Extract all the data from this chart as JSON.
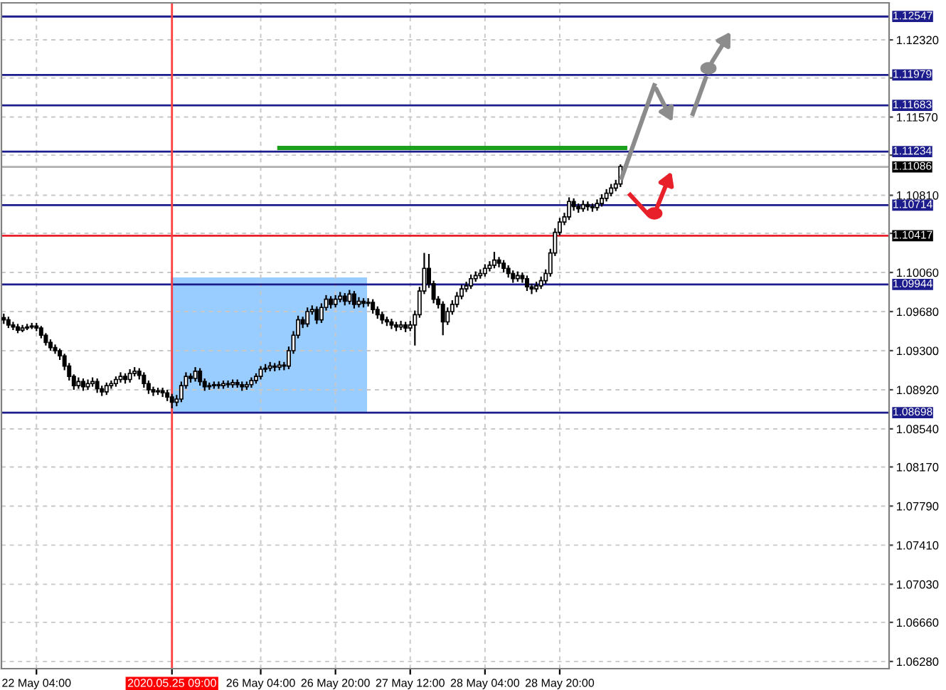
{
  "chart_data": {
    "type": "candlestick",
    "categories": [
      null,
      null,
      null,
      null,
      null,
      null,
      null,
      "22 May 04:00",
      null,
      null,
      null,
      null,
      null,
      null,
      null,
      null,
      null,
      null,
      null,
      null,
      null,
      null,
      null,
      null,
      null,
      null,
      null,
      null,
      null,
      null,
      null,
      null,
      null,
      null,
      null,
      null,
      "2020.05.25 09:00",
      null,
      null,
      null,
      null,
      null,
      null,
      null,
      null,
      null,
      null,
      null,
      null,
      null,
      null,
      null,
      null,
      null,
      null,
      "26 May 04:00",
      null,
      null,
      null,
      null,
      null,
      null,
      null,
      null,
      null,
      null,
      null,
      null,
      null,
      null,
      null,
      "26 May 20:00",
      null,
      null,
      null,
      null,
      null,
      null,
      null,
      null,
      null,
      null,
      null,
      null,
      null,
      null,
      null,
      "27 May 12:00",
      null,
      null,
      null,
      null,
      null,
      null,
      null,
      null,
      null,
      null,
      null,
      null,
      null,
      null,
      null,
      "28 May 04:00",
      null,
      null,
      null,
      null,
      null,
      null,
      null,
      null,
      null,
      null,
      null,
      null,
      null,
      null,
      null,
      "28 May 20:00",
      null,
      null,
      null,
      null,
      null,
      null,
      null,
      null,
      null,
      null,
      null,
      null,
      null,
      null,
      null,
      null,
      null,
      null,
      null,
      null,
      null,
      null,
      null,
      null,
      null,
      null,
      null,
      null,
      null,
      null,
      null,
      null,
      null,
      null,
      null,
      null,
      null,
      null,
      null,
      null,
      null,
      null,
      null,
      null,
      null,
      null,
      null,
      null,
      null,
      null,
      null,
      null,
      null,
      null,
      null,
      null,
      null,
      null,
      null,
      null,
      null,
      null,
      null,
      null,
      null,
      null,
      null,
      null,
      null,
      null
    ],
    "ohlc": [
      [
        1.0962,
        1.0966,
        1.0956,
        1.096
      ],
      [
        1.096,
        1.0963,
        1.0952,
        1.0955
      ],
      [
        1.0955,
        1.0958,
        1.095,
        1.0953
      ],
      [
        1.0953,
        1.0956,
        1.0947,
        1.095
      ],
      [
        1.095,
        1.0955,
        1.0948,
        1.0952
      ],
      [
        1.0952,
        1.0956,
        1.095,
        1.0953
      ],
      [
        1.0953,
        1.0957,
        1.0951,
        1.0954
      ],
      [
        1.0954,
        1.0957,
        1.0949,
        1.0952
      ],
      [
        1.0952,
        1.0954,
        1.0942,
        1.0945
      ],
      [
        1.0945,
        1.0947,
        1.0935,
        1.0938
      ],
      [
        1.0938,
        1.0941,
        1.093,
        1.0933
      ],
      [
        1.0933,
        1.0936,
        1.0927,
        1.093
      ],
      [
        1.093,
        1.0932,
        1.0921,
        1.0925
      ],
      [
        1.0925,
        1.0927,
        1.0911,
        1.0915
      ],
      [
        1.0915,
        1.0918,
        1.0901,
        1.0905
      ],
      [
        1.0905,
        1.0907,
        1.0892,
        1.0896
      ],
      [
        1.0896,
        1.0904,
        1.0893,
        1.09
      ],
      [
        1.09,
        1.0903,
        1.0891,
        1.0895
      ],
      [
        1.0895,
        1.0902,
        1.0892,
        1.0898
      ],
      [
        1.0898,
        1.0904,
        1.0895,
        1.09
      ],
      [
        1.09,
        1.0903,
        1.0889,
        1.0893
      ],
      [
        1.0893,
        1.0896,
        1.0886,
        1.089
      ],
      [
        1.089,
        1.0899,
        1.0887,
        1.0896
      ],
      [
        1.0896,
        1.0901,
        1.0893,
        1.0898
      ],
      [
        1.0898,
        1.0905,
        1.0895,
        1.0902
      ],
      [
        1.0902,
        1.0909,
        1.0899,
        1.0905
      ],
      [
        1.0905,
        1.0908,
        1.0898,
        1.0902
      ],
      [
        1.0902,
        1.0912,
        1.0899,
        1.0908
      ],
      [
        1.0908,
        1.0914,
        1.0905,
        1.091
      ],
      [
        1.091,
        1.0913,
        1.0902,
        1.0906
      ],
      [
        1.0906,
        1.0909,
        1.0894,
        1.0898
      ],
      [
        1.0898,
        1.0901,
        1.0888,
        1.0892
      ],
      [
        1.0892,
        1.0895,
        1.0886,
        1.089
      ],
      [
        1.089,
        1.0894,
        1.0887,
        1.0891
      ],
      [
        1.0891,
        1.0894,
        1.0885,
        1.0889
      ],
      [
        1.0889,
        1.0892,
        1.0881,
        1.0885
      ],
      [
        1.0885,
        1.0888,
        1.0874,
        1.088
      ],
      [
        1.088,
        1.0887,
        1.0876,
        1.0883
      ],
      [
        1.0883,
        1.09,
        1.088,
        1.0896
      ],
      [
        1.0896,
        1.0909,
        1.0893,
        1.0905
      ],
      [
        1.0905,
        1.0908,
        1.0899,
        1.0903
      ],
      [
        1.0903,
        1.0914,
        1.09,
        1.091
      ],
      [
        1.091,
        1.0913,
        1.0896,
        1.09
      ],
      [
        1.09,
        1.0903,
        1.0891,
        1.0895
      ],
      [
        1.0895,
        1.0899,
        1.0892,
        1.0896
      ],
      [
        1.0896,
        1.09,
        1.0893,
        1.0897
      ],
      [
        1.0897,
        1.09,
        1.0893,
        1.0896
      ],
      [
        1.0896,
        1.0901,
        1.0893,
        1.0898
      ],
      [
        1.0898,
        1.0901,
        1.0894,
        1.0897
      ],
      [
        1.0897,
        1.0902,
        1.0894,
        1.0899
      ],
      [
        1.0899,
        1.0902,
        1.0894,
        1.0897
      ],
      [
        1.0897,
        1.09,
        1.0891,
        1.0895
      ],
      [
        1.0895,
        1.09,
        1.0892,
        1.0897
      ],
      [
        1.0897,
        1.0904,
        1.0894,
        1.0901
      ],
      [
        1.0901,
        1.0908,
        1.0898,
        1.0905
      ],
      [
        1.0905,
        1.0915,
        1.0902,
        1.0912
      ],
      [
        1.0912,
        1.0917,
        1.0909,
        1.0913
      ],
      [
        1.0913,
        1.0919,
        1.091,
        1.0915
      ],
      [
        1.0915,
        1.0918,
        1.091,
        1.0914
      ],
      [
        1.0914,
        1.092,
        1.0911,
        1.0916
      ],
      [
        1.0916,
        1.0919,
        1.0911,
        1.0915
      ],
      [
        1.0915,
        1.0934,
        1.0912,
        1.093
      ],
      [
        1.093,
        1.0949,
        1.0927,
        1.0945
      ],
      [
        1.0945,
        1.0964,
        1.0942,
        1.096
      ],
      [
        1.096,
        1.0963,
        1.0952,
        1.0956
      ],
      [
        1.0956,
        1.0972,
        1.0953,
        1.0968
      ],
      [
        1.0968,
        1.0974,
        1.0965,
        1.097
      ],
      [
        1.097,
        1.0973,
        1.0956,
        1.096
      ],
      [
        1.096,
        1.0976,
        1.0957,
        1.0972
      ],
      [
        1.0972,
        1.0984,
        1.0969,
        1.098
      ],
      [
        1.098,
        1.0983,
        1.0971,
        1.0975
      ],
      [
        1.0975,
        1.0984,
        1.0972,
        1.098
      ],
      [
        1.098,
        1.0987,
        1.0977,
        1.0983
      ],
      [
        1.0983,
        1.0986,
        1.0974,
        1.0978
      ],
      [
        1.0978,
        1.0989,
        1.0975,
        1.0985
      ],
      [
        1.0985,
        1.0988,
        1.0971,
        1.0975
      ],
      [
        1.0975,
        1.0982,
        1.0972,
        1.0978
      ],
      [
        1.0978,
        1.0981,
        1.0972,
        1.0976
      ],
      [
        1.0976,
        1.0981,
        1.0973,
        1.0977
      ],
      [
        1.0977,
        1.098,
        1.0966,
        1.097
      ],
      [
        1.097,
        1.0973,
        1.0961,
        1.0965
      ],
      [
        1.0965,
        1.0968,
        1.0956,
        1.096
      ],
      [
        1.096,
        1.0963,
        1.0954,
        1.0958
      ],
      [
        1.0958,
        1.0961,
        1.0951,
        1.0955
      ],
      [
        1.0955,
        1.0958,
        1.0949,
        1.0953
      ],
      [
        1.0953,
        1.0959,
        1.095,
        1.0955
      ],
      [
        1.0955,
        1.0958,
        1.0948,
        1.0952
      ],
      [
        1.0952,
        1.0959,
        1.0949,
        1.0955
      ],
      [
        1.0955,
        1.0969,
        1.0935,
        1.0965
      ],
      [
        1.0965,
        1.0992,
        1.0962,
        1.0988
      ],
      [
        1.0988,
        1.1025,
        1.0985,
        1.101
      ],
      [
        1.101,
        1.1024,
        1.0991,
        1.0995
      ],
      [
        1.0995,
        1.0998,
        1.0976,
        1.098
      ],
      [
        1.098,
        1.0983,
        1.0971,
        1.0975
      ],
      [
        1.0975,
        1.0978,
        1.0945,
        1.0958
      ],
      [
        1.0958,
        1.0972,
        1.0955,
        1.0968
      ],
      [
        1.0968,
        1.0979,
        1.0965,
        1.0975
      ],
      [
        1.0975,
        1.0987,
        1.0972,
        1.0983
      ],
      [
        1.0983,
        1.0994,
        1.098,
        1.099
      ],
      [
        1.099,
        1.0997,
        1.0987,
        1.0993
      ],
      [
        1.0993,
        1.1004,
        1.099,
        1.1
      ],
      [
        1.1,
        1.1007,
        1.0997,
        1.1003
      ],
      [
        1.1003,
        1.1009,
        1.1,
        1.1005
      ],
      [
        1.1005,
        1.1014,
        1.1002,
        1.101
      ],
      [
        1.101,
        1.1017,
        1.1007,
        1.1013
      ],
      [
        1.1013,
        1.1026,
        1.101,
        1.1018
      ],
      [
        1.1018,
        1.1021,
        1.1011,
        1.1015
      ],
      [
        1.1015,
        1.1018,
        1.1006,
        1.101
      ],
      [
        1.101,
        1.1013,
        1.1001,
        1.1005
      ],
      [
        1.1005,
        1.1008,
        1.0996,
        1.1
      ],
      [
        1.1,
        1.1007,
        1.0997,
        1.1003
      ],
      [
        1.1003,
        1.1006,
        1.0996,
        1.1
      ],
      [
        1.1,
        1.1003,
        1.0988,
        1.0992
      ],
      [
        1.0992,
        1.0995,
        1.0985,
        1.099
      ],
      [
        1.099,
        1.0997,
        1.0987,
        1.0993
      ],
      [
        1.0993,
        1.1002,
        1.099,
        1.0998
      ],
      [
        1.0998,
        1.1009,
        1.0995,
        1.1005
      ],
      [
        1.1005,
        1.1029,
        1.1002,
        1.1025
      ],
      [
        1.1025,
        1.1049,
        1.1022,
        1.1045
      ],
      [
        1.1045,
        1.1059,
        1.1042,
        1.1055
      ],
      [
        1.1055,
        1.1064,
        1.1052,
        1.106
      ],
      [
        1.106,
        1.1079,
        1.1057,
        1.1075
      ],
      [
        1.1075,
        1.1078,
        1.1066,
        1.107
      ],
      [
        1.107,
        1.1073,
        1.1064,
        1.1068
      ],
      [
        1.1068,
        1.1076,
        1.1065,
        1.1072
      ],
      [
        1.1072,
        1.1075,
        1.1066,
        1.107
      ],
      [
        1.107,
        1.1073,
        1.1065,
        1.1069
      ],
      [
        1.1069,
        1.1077,
        1.1066,
        1.1073
      ],
      [
        1.1073,
        1.1082,
        1.107,
        1.1078
      ],
      [
        1.1078,
        1.1087,
        1.1075,
        1.1083
      ],
      [
        1.1083,
        1.1092,
        1.108,
        1.1088
      ],
      [
        1.1088,
        1.1096,
        1.1085,
        1.1092
      ],
      [
        1.1092,
        1.1111,
        1.1089,
        1.1109
      ],
      null,
      null,
      null,
      null,
      null,
      null,
      null,
      null,
      null,
      null,
      null,
      null,
      null,
      null,
      null,
      null,
      null,
      null,
      null,
      null,
      null,
      null,
      null,
      null,
      null,
      null,
      null,
      null,
      null,
      null,
      null,
      null,
      null,
      null,
      null,
      null,
      null,
      null,
      null,
      null,
      null,
      null,
      null,
      null,
      null,
      null,
      null,
      null,
      null,
      null,
      null,
      null,
      null,
      null,
      null,
      null,
      null
    ],
    "color": "#000000",
    "series": [
      {
        "type": "line",
        "color": "#1aa01a",
        "values": [
          null,
          null,
          null,
          null,
          null,
          null,
          null,
          null,
          null,
          null,
          null,
          null,
          null,
          null,
          null,
          null,
          null,
          null,
          null,
          null,
          null,
          null,
          null,
          null,
          null,
          null,
          null,
          null,
          null,
          null,
          null,
          null,
          null,
          null,
          null,
          null,
          null,
          null,
          null,
          null,
          null,
          null,
          null,
          null,
          null,
          null,
          null,
          null,
          null,
          null,
          null,
          null,
          null,
          null,
          null,
          null,
          null,
          null,
          null,
          1.1127,
          1.1127,
          1.1127,
          1.1127,
          1.1127,
          1.1127,
          1.1127,
          1.1127,
          1.1127,
          1.1127,
          1.1127,
          1.1127,
          1.1127,
          1.1127,
          1.1127,
          1.1127,
          1.1127,
          1.1127,
          1.1127,
          1.1127,
          1.1127,
          1.1127,
          1.1127,
          1.1127,
          1.1127,
          1.1127,
          1.1127,
          1.1127,
          1.1127,
          1.1127,
          1.1127,
          1.1127,
          1.1127,
          1.1127,
          1.1127,
          1.1127,
          1.1127,
          1.1127,
          1.1127,
          1.1127,
          1.1127,
          1.1127,
          1.1127,
          1.1127,
          1.1127,
          1.1127,
          1.1127,
          1.1127,
          1.1127,
          1.1127,
          1.1127,
          1.1127,
          1.1127,
          1.1127,
          1.1127,
          1.1127,
          1.1127,
          1.1127,
          1.1127,
          1.1127,
          1.1127,
          1.1127,
          1.1127,
          1.1127,
          1.1127,
          1.1127,
          1.1127,
          1.1127,
          1.1127,
          1.1127,
          1.1127,
          1.1127,
          1.1127,
          1.1127,
          1.1127,
          null,
          null,
          null,
          null,
          null,
          null,
          null,
          null,
          null,
          null,
          null,
          null,
          null,
          null,
          null,
          null,
          null,
          null,
          null,
          null,
          null,
          null,
          null,
          null,
          null,
          null,
          null,
          null,
          null,
          null,
          null,
          null,
          null,
          null,
          null,
          null,
          null,
          null,
          null,
          null,
          null,
          null,
          null,
          null,
          null,
          null,
          null,
          null,
          null,
          null,
          null,
          null,
          null,
          null,
          null,
          null
        ]
      }
    ],
    "ylim": [
      1.0621,
      1.1268
    ],
    "yticks": [
      {
        "value": 1.0628,
        "label": "1.06280"
      },
      {
        "value": 1.0666,
        "label": "1.06660"
      },
      {
        "value": 1.0703,
        "label": "1.07030"
      },
      {
        "value": 1.0741,
        "label": "1.07410"
      },
      {
        "value": 1.0779,
        "label": "1.07790"
      },
      {
        "value": 1.0817,
        "label": "1.08170"
      },
      {
        "value": 1.0854,
        "label": "1.08540"
      },
      {
        "value": 1.0892,
        "label": "1.08920"
      },
      {
        "value": 1.093,
        "label": "1.09300"
      },
      {
        "value": 1.0968,
        "label": "1.09680"
      },
      {
        "value": 1.1006,
        "label": "1.10060"
      },
      {
        "value": 1.1044,
        "label": null
      },
      {
        "value": 1.1081,
        "label": "1.10810"
      },
      {
        "value": 1.112,
        "label": null
      },
      {
        "value": 1.1157,
        "label": "1.11570"
      },
      {
        "value": 1.1195,
        "label": null
      },
      {
        "value": 1.1232,
        "label": "1.12320"
      }
    ],
    "grid": true,
    "ref_lines": [
      {
        "axis": "y",
        "value": 1.12547,
        "label": "1.12547",
        "color": "#1c1c8c"
      },
      {
        "axis": "y",
        "value": 1.11979,
        "label": "1.11979",
        "color": "#1c1c8c"
      },
      {
        "axis": "y",
        "value": 1.11683,
        "label": "1.11683",
        "color": "#1c1c8c"
      },
      {
        "axis": "y",
        "value": 1.11234,
        "label": "1.11234",
        "color": "#1c1c8c"
      },
      {
        "axis": "y",
        "value": 1.11086,
        "label": "1.11086",
        "color": "#b0b0b0"
      },
      {
        "axis": "y",
        "value": 1.10714,
        "label": "1.10714",
        "color": "#1c1c8c"
      },
      {
        "axis": "y",
        "value": 1.10417,
        "label": "1.10417",
        "color": "#e8202a"
      },
      {
        "axis": "y",
        "value": 1.09944,
        "label": "1.09944",
        "color": "#1c1c8c"
      },
      {
        "axis": "y",
        "value": 1.08698,
        "label": "1.08698",
        "color": "#1c1c8c"
      },
      {
        "axis": "x",
        "value": "2020.05.25 09:00",
        "color": "#ff4040"
      }
    ]
  }
}
